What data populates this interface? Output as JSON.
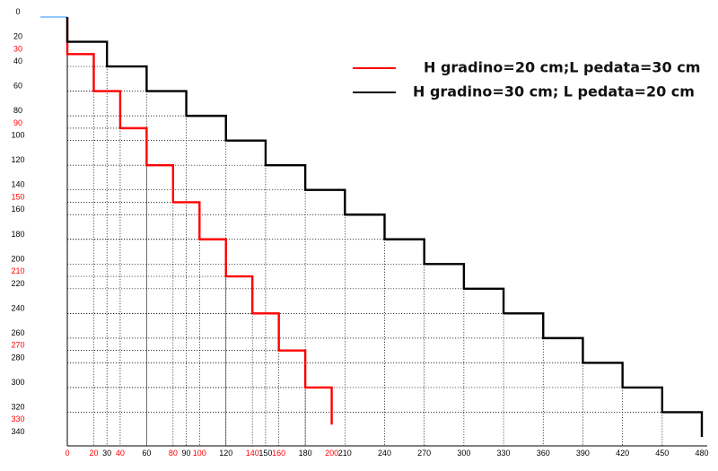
{
  "chart_data": {
    "type": "line",
    "title": "",
    "xlabel": "",
    "ylabel": "",
    "xlim": [
      0,
      480
    ],
    "ylim": [
      0,
      340
    ],
    "y_inverted": true,
    "grid": "dotted",
    "legend_position": "top-right",
    "series": [
      {
        "name": "H gradino=20 cm;L pedata=30 cm",
        "color": "#ff0000",
        "x": [
          0,
          0,
          20,
          20,
          40,
          40,
          60,
          60,
          80,
          80,
          100,
          100,
          120,
          120,
          140,
          140,
          160,
          160,
          180,
          180,
          200,
          200
        ],
        "y": [
          0,
          30,
          30,
          60,
          60,
          90,
          90,
          120,
          120,
          150,
          150,
          180,
          180,
          210,
          210,
          240,
          240,
          270,
          270,
          300,
          300,
          330
        ]
      },
      {
        "name": "H gradino=30 cm; L pedata=20 cm",
        "color": "#000000",
        "x": [
          0,
          0,
          30,
          30,
          60,
          60,
          90,
          90,
          120,
          120,
          150,
          150,
          180,
          180,
          210,
          210,
          240,
          240,
          270,
          270,
          300,
          300,
          330,
          330,
          360,
          360,
          390,
          390,
          420,
          420,
          450,
          450,
          480,
          480
        ],
        "y": [
          0,
          20,
          20,
          40,
          40,
          60,
          60,
          80,
          80,
          100,
          100,
          120,
          120,
          140,
          140,
          160,
          160,
          180,
          180,
          200,
          200,
          220,
          220,
          240,
          240,
          260,
          260,
          280,
          280,
          300,
          300,
          320,
          320,
          340
        ]
      }
    ],
    "x_ticks": [
      {
        "v": 0,
        "label": "0",
        "color": "#ff0000"
      },
      {
        "v": 20,
        "label": "20",
        "color": "#ff0000"
      },
      {
        "v": 30,
        "label": "30",
        "color": "#000000"
      },
      {
        "v": 40,
        "label": "40",
        "color": "#ff0000"
      },
      {
        "v": 60,
        "label": "60",
        "color": "#000000"
      },
      {
        "v": 80,
        "label": "80",
        "color": "#ff0000"
      },
      {
        "v": 90,
        "label": "90",
        "color": "#000000"
      },
      {
        "v": 100,
        "label": "100",
        "color": "#ff0000"
      },
      {
        "v": 120,
        "label": "120",
        "color": "#000000"
      },
      {
        "v": 140,
        "label": "140",
        "color": "#ff0000"
      },
      {
        "v": 150,
        "label": "150",
        "color": "#000000"
      },
      {
        "v": 160,
        "label": "160",
        "color": "#ff0000"
      },
      {
        "v": 180,
        "label": "180",
        "color": "#000000"
      },
      {
        "v": 200,
        "label": "200",
        "color": "#ff0000"
      },
      {
        "v": 210,
        "label": "210",
        "color": "#000000"
      },
      {
        "v": 240,
        "label": "240",
        "color": "#000000"
      },
      {
        "v": 270,
        "label": "270",
        "color": "#000000"
      },
      {
        "v": 300,
        "label": "300",
        "color": "#000000"
      },
      {
        "v": 330,
        "label": "330",
        "color": "#000000"
      },
      {
        "v": 360,
        "label": "360",
        "color": "#000000"
      },
      {
        "v": 390,
        "label": "390",
        "color": "#000000"
      },
      {
        "v": 420,
        "label": "420",
        "color": "#000000"
      },
      {
        "v": 450,
        "label": "450",
        "color": "#000000"
      },
      {
        "v": 480,
        "label": "480",
        "color": "#000000"
      }
    ],
    "y_ticks": [
      {
        "v": 0,
        "label": "0",
        "color": "#000000"
      },
      {
        "v": 20,
        "label": "20",
        "color": "#000000"
      },
      {
        "v": 30,
        "label": "30",
        "color": "#ff0000"
      },
      {
        "v": 40,
        "label": "40",
        "color": "#000000"
      },
      {
        "v": 60,
        "label": "60",
        "color": "#000000"
      },
      {
        "v": 80,
        "label": "80",
        "color": "#000000"
      },
      {
        "v": 90,
        "label": "90",
        "color": "#ff0000"
      },
      {
        "v": 100,
        "label": "100",
        "color": "#000000"
      },
      {
        "v": 120,
        "label": "120",
        "color": "#000000"
      },
      {
        "v": 140,
        "label": "140",
        "color": "#000000"
      },
      {
        "v": 150,
        "label": "150",
        "color": "#ff0000"
      },
      {
        "v": 160,
        "label": "160",
        "color": "#000000"
      },
      {
        "v": 180,
        "label": "180",
        "color": "#000000"
      },
      {
        "v": 200,
        "label": "200",
        "color": "#000000"
      },
      {
        "v": 210,
        "label": "210",
        "color": "#ff0000"
      },
      {
        "v": 220,
        "label": "220",
        "color": "#000000"
      },
      {
        "v": 240,
        "label": "240",
        "color": "#000000"
      },
      {
        "v": 260,
        "label": "260",
        "color": "#000000"
      },
      {
        "v": 270,
        "label": "270",
        "color": "#ff0000"
      },
      {
        "v": 280,
        "label": "280",
        "color": "#000000"
      },
      {
        "v": 300,
        "label": "300",
        "color": "#000000"
      },
      {
        "v": 320,
        "label": "320",
        "color": "#000000"
      },
      {
        "v": 330,
        "label": "330",
        "color": "#ff0000"
      },
      {
        "v": 340,
        "label": "340",
        "color": "#000000"
      }
    ]
  }
}
